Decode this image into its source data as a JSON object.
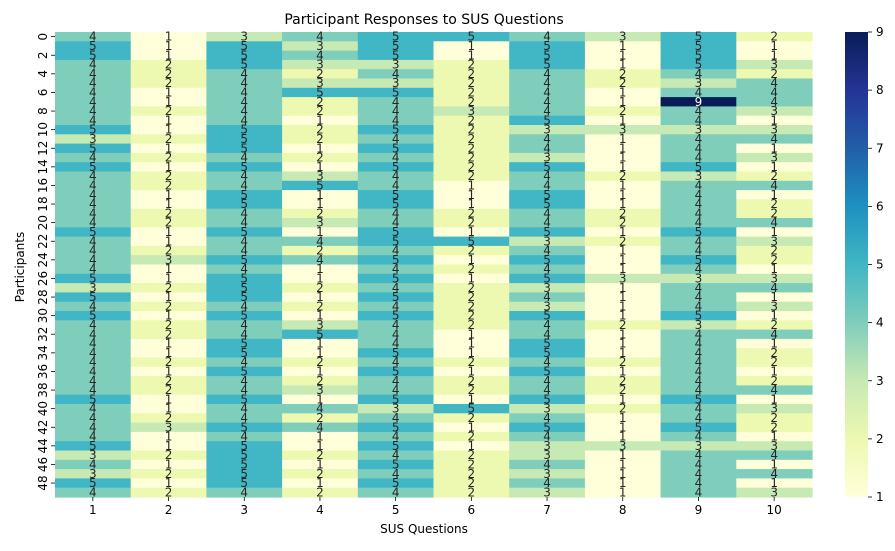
{
  "chart_data": {
    "type": "heatmap",
    "title": "Participant Responses to SUS Questions",
    "xlabel": "SUS Questions",
    "ylabel": "Participants",
    "x_categories": [
      "1",
      "2",
      "3",
      "4",
      "5",
      "6",
      "7",
      "8",
      "9",
      "10"
    ],
    "y_categories": [
      "0",
      "1",
      "2",
      "3",
      "4",
      "5",
      "6",
      "7",
      "8",
      "9",
      "10",
      "11",
      "12",
      "13",
      "14",
      "15",
      "16",
      "17",
      "18",
      "19",
      "20",
      "21",
      "22",
      "23",
      "24",
      "25",
      "26",
      "27",
      "28",
      "29",
      "30",
      "31",
      "32",
      "33",
      "34",
      "35",
      "36",
      "37",
      "38",
      "39",
      "40",
      "41",
      "42",
      "43",
      "44",
      "45",
      "46",
      "47",
      "48",
      "49"
    ],
    "y_tick_labels": [
      "0",
      "2",
      "4",
      "6",
      "8",
      "10",
      "12",
      "14",
      "16",
      "18",
      "20",
      "22",
      "24",
      "26",
      "28",
      "30",
      "32",
      "34",
      "36",
      "38",
      "40",
      "42",
      "44",
      "46",
      "48"
    ],
    "values": [
      [
        4,
        1,
        3,
        4,
        5,
        5,
        4,
        3,
        5,
        2
      ],
      [
        5,
        1,
        5,
        3,
        5,
        1,
        5,
        1,
        5,
        1
      ],
      [
        5,
        1,
        5,
        4,
        5,
        1,
        5,
        1,
        5,
        1
      ],
      [
        4,
        2,
        5,
        3,
        3,
        2,
        5,
        1,
        5,
        3
      ],
      [
        4,
        2,
        4,
        2,
        4,
        2,
        4,
        2,
        4,
        2
      ],
      [
        4,
        2,
        4,
        3,
        3,
        2,
        4,
        2,
        3,
        4
      ],
      [
        4,
        1,
        4,
        5,
        5,
        2,
        4,
        1,
        4,
        4
      ],
      [
        4,
        1,
        4,
        2,
        4,
        2,
        4,
        1,
        9,
        4
      ],
      [
        4,
        2,
        4,
        2,
        4,
        3,
        4,
        2,
        4,
        3
      ],
      [
        4,
        1,
        4,
        1,
        4,
        2,
        5,
        1,
        4,
        1
      ],
      [
        5,
        1,
        5,
        2,
        5,
        2,
        3,
        3,
        3,
        3
      ],
      [
        3,
        2,
        5,
        2,
        4,
        2,
        4,
        1,
        4,
        4
      ],
      [
        5,
        1,
        5,
        1,
        5,
        2,
        4,
        1,
        4,
        1
      ],
      [
        4,
        2,
        4,
        2,
        4,
        2,
        3,
        1,
        4,
        3
      ],
      [
        5,
        1,
        5,
        1,
        5,
        2,
        5,
        1,
        5,
        1
      ],
      [
        4,
        2,
        4,
        3,
        4,
        2,
        4,
        2,
        3,
        2
      ],
      [
        4,
        2,
        4,
        5,
        4,
        1,
        4,
        1,
        4,
        4
      ],
      [
        4,
        1,
        5,
        1,
        5,
        1,
        5,
        1,
        4,
        1
      ],
      [
        4,
        1,
        5,
        1,
        5,
        1,
        5,
        1,
        4,
        2
      ],
      [
        4,
        2,
        4,
        2,
        4,
        2,
        4,
        2,
        4,
        2
      ],
      [
        4,
        2,
        4,
        3,
        4,
        2,
        4,
        2,
        4,
        4
      ],
      [
        5,
        1,
        5,
        1,
        5,
        1,
        5,
        1,
        5,
        1
      ],
      [
        4,
        1,
        4,
        4,
        5,
        5,
        3,
        2,
        4,
        3
      ],
      [
        4,
        2,
        4,
        2,
        4,
        2,
        4,
        1,
        4,
        2
      ],
      [
        4,
        3,
        5,
        4,
        5,
        1,
        5,
        1,
        5,
        2
      ],
      [
        4,
        1,
        4,
        1,
        4,
        2,
        4,
        1,
        4,
        1
      ],
      [
        5,
        1,
        5,
        1,
        5,
        1,
        5,
        3,
        3,
        3
      ],
      [
        3,
        2,
        5,
        2,
        4,
        2,
        3,
        1,
        4,
        4
      ],
      [
        5,
        1,
        5,
        1,
        5,
        2,
        4,
        1,
        4,
        1
      ],
      [
        4,
        2,
        4,
        2,
        4,
        2,
        3,
        1,
        4,
        3
      ],
      [
        5,
        1,
        5,
        1,
        5,
        2,
        5,
        1,
        5,
        1
      ],
      [
        4,
        2,
        4,
        3,
        4,
        2,
        4,
        2,
        3,
        2
      ],
      [
        4,
        2,
        4,
        5,
        4,
        1,
        4,
        1,
        4,
        4
      ],
      [
        4,
        1,
        5,
        1,
        4,
        1,
        5,
        1,
        4,
        1
      ],
      [
        4,
        1,
        5,
        1,
        5,
        1,
        5,
        1,
        4,
        2
      ],
      [
        4,
        2,
        4,
        2,
        4,
        2,
        4,
        2,
        4,
        2
      ],
      [
        4,
        1,
        5,
        1,
        5,
        1,
        5,
        1,
        4,
        1
      ],
      [
        4,
        2,
        4,
        2,
        4,
        2,
        4,
        2,
        4,
        2
      ],
      [
        4,
        2,
        4,
        3,
        4,
        2,
        4,
        2,
        4,
        4
      ],
      [
        5,
        1,
        5,
        1,
        5,
        1,
        5,
        1,
        5,
        1
      ],
      [
        4,
        1,
        4,
        4,
        3,
        5,
        3,
        2,
        4,
        3
      ],
      [
        4,
        2,
        4,
        2,
        4,
        2,
        4,
        1,
        4,
        2
      ],
      [
        4,
        3,
        5,
        4,
        5,
        1,
        5,
        1,
        5,
        2
      ],
      [
        4,
        1,
        4,
        1,
        4,
        2,
        4,
        1,
        4,
        1
      ],
      [
        5,
        1,
        5,
        1,
        5,
        1,
        3,
        3,
        3,
        3
      ],
      [
        3,
        2,
        5,
        2,
        4,
        2,
        3,
        1,
        4,
        4
      ],
      [
        4,
        1,
        5,
        1,
        5,
        2,
        4,
        1,
        4,
        1
      ],
      [
        3,
        2,
        5,
        2,
        4,
        2,
        3,
        1,
        4,
        4
      ],
      [
        5,
        1,
        5,
        1,
        5,
        2,
        4,
        1,
        4,
        1
      ],
      [
        4,
        2,
        4,
        2,
        4,
        2,
        3,
        1,
        4,
        3
      ]
    ],
    "colorbar": {
      "min": 1,
      "max": 9,
      "ticks": [
        1,
        2,
        3,
        4,
        5,
        6,
        7,
        8,
        9
      ]
    },
    "colormap": "YlGnBu",
    "colormap_stops": [
      "#ffffd9",
      "#edf8b1",
      "#c7e9b4",
      "#7fcdbb",
      "#41b6c4",
      "#1d91c0",
      "#225ea8",
      "#253494",
      "#081d58"
    ]
  }
}
